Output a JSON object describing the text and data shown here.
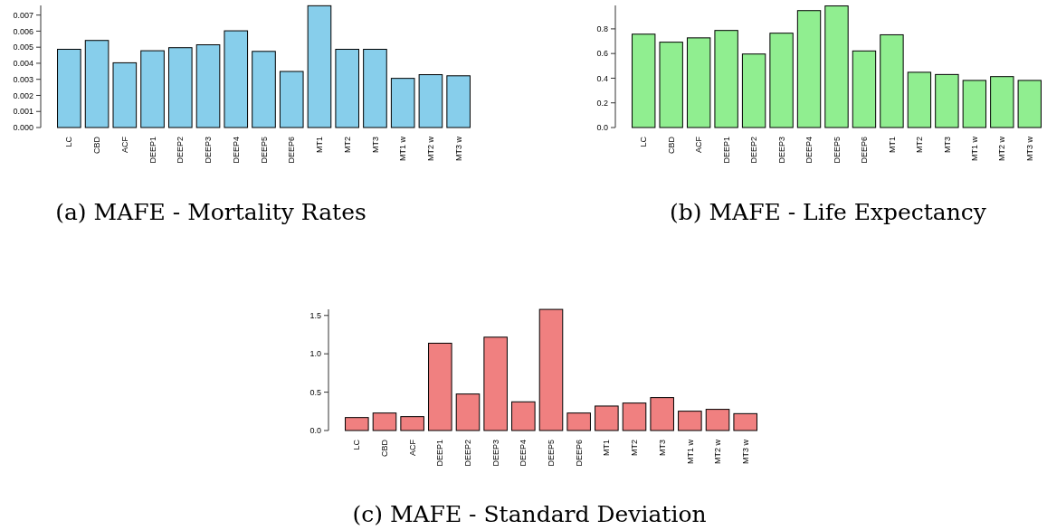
{
  "chart_data": [
    {
      "type": "bar",
      "title": "(a) MAFE - Mortality Rates",
      "categories": [
        "LC",
        "CBD",
        "ACF",
        "DEEP1",
        "DEEP2",
        "DEEP3",
        "DEEP4",
        "DEEP5",
        "DEEP6",
        "MT1",
        "MT2",
        "MT3",
        "MT1 w",
        "MT2 w",
        "MT3 w"
      ],
      "values": [
        0.00487,
        0.00542,
        0.00403,
        0.00478,
        0.00497,
        0.00515,
        0.00602,
        0.00474,
        0.00349,
        0.00758,
        0.00487,
        0.00487,
        0.00306,
        0.00329,
        0.00322
      ],
      "color": "#87ceeb",
      "ylim": [
        0,
        0.0076
      ],
      "yticks": [
        {
          "value": 0,
          "label": "0.000"
        },
        {
          "value": 0.001,
          "label": "0.001"
        },
        {
          "value": 0.002,
          "label": "0.002"
        },
        {
          "value": 0.003,
          "label": "0.003"
        },
        {
          "value": 0.004,
          "label": "0.004"
        },
        {
          "value": 0.005,
          "label": "0.005"
        },
        {
          "value": 0.006,
          "label": "0.006"
        },
        {
          "value": 0.007,
          "label": "0.007"
        }
      ],
      "grid": false
    },
    {
      "type": "bar",
      "title": "(b) MAFE - Life Expectancy",
      "categories": [
        "LC",
        "CBD",
        "ACF",
        "DEEP1",
        "DEEP2",
        "DEEP3",
        "DEEP4",
        "DEEP5",
        "DEEP6",
        "MT1",
        "MT2",
        "MT3",
        "MT1 w",
        "MT2 w",
        "MT3 w"
      ],
      "values": [
        0.757,
        0.692,
        0.727,
        0.787,
        0.596,
        0.765,
        0.948,
        0.986,
        0.621,
        0.752,
        0.448,
        0.43,
        0.382,
        0.413,
        0.382
      ],
      "color": "#90ee90",
      "ylim": [
        0,
        0.99
      ],
      "yticks": [
        {
          "value": 0,
          "label": "0.0"
        },
        {
          "value": 0.2,
          "label": "0.2"
        },
        {
          "value": 0.4,
          "label": "0.4"
        },
        {
          "value": 0.6,
          "label": "0.6"
        },
        {
          "value": 0.8,
          "label": "0.8"
        }
      ],
      "grid": false
    },
    {
      "type": "bar",
      "title": "(c) MAFE - Standard Deviation",
      "categories": [
        "LC",
        "CBD",
        "ACF",
        "DEEP1",
        "DEEP2",
        "DEEP3",
        "DEEP4",
        "DEEP5",
        "DEEP6",
        "MT1",
        "MT2",
        "MT3",
        "MT1 w",
        "MT2 w",
        "MT3 w"
      ],
      "values": [
        0.169,
        0.228,
        0.181,
        1.138,
        0.476,
        1.217,
        0.374,
        1.579,
        0.228,
        0.319,
        0.358,
        0.429,
        0.252,
        0.276,
        0.22
      ],
      "color": "#f08080",
      "ylim": [
        0,
        1.58
      ],
      "yticks": [
        {
          "value": 0,
          "label": "0.0"
        },
        {
          "value": 0.5,
          "label": "0.5"
        },
        {
          "value": 1,
          "label": "1.0"
        },
        {
          "value": 1.5,
          "label": "1.5"
        }
      ],
      "grid": false
    }
  ]
}
